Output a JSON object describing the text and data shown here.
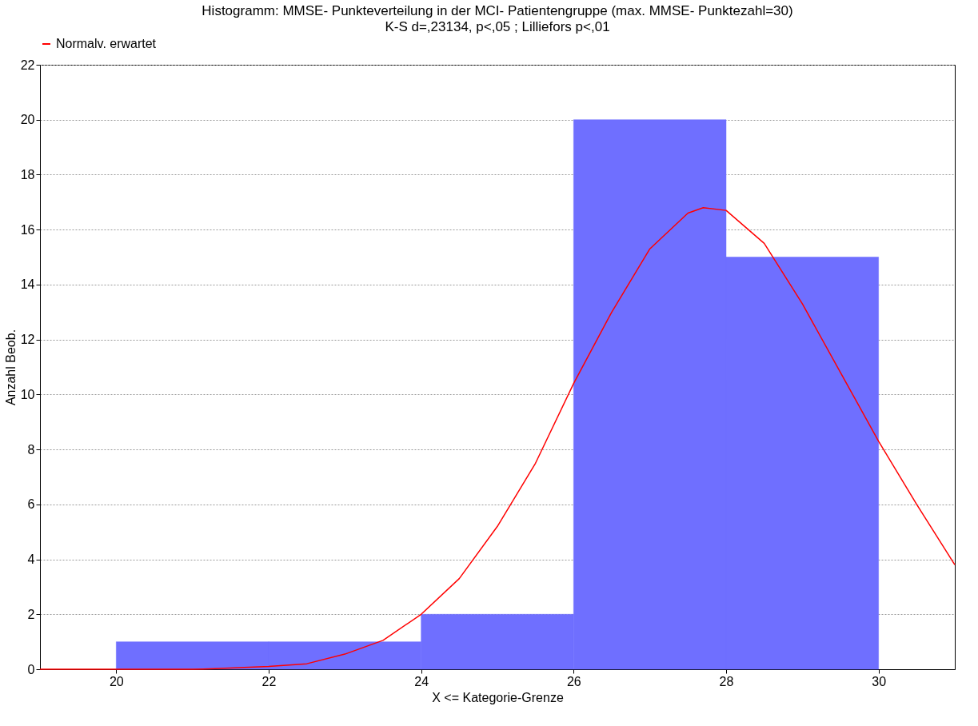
{
  "chart_data": {
    "type": "histogram",
    "title": "Histogramm: MMSE- Punkteverteilung in der MCI- Patientengruppe (max. MMSE- Punktezahl=30)",
    "subtitle": "K-S d=,23134, p<,05 ; Lilliefors p<,01",
    "xlabel": "X <= Kategorie-Grenze",
    "ylabel": "Anzahl Beob.",
    "bins": [
      20,
      22,
      24,
      26,
      28,
      30
    ],
    "values": [
      1,
      1,
      2,
      20,
      15
    ],
    "color": "#6f6fff",
    "series": [
      {
        "name": "Normalv. erwartet",
        "type": "line",
        "color": "#ff0000",
        "x": [
          19,
          20,
          21,
          21.3,
          22,
          22.5,
          23,
          23.5,
          24,
          24.5,
          25,
          25.5,
          26,
          26.5,
          27,
          27.5,
          27.7,
          28,
          28.5,
          29,
          29.5,
          30,
          30.5,
          31
        ],
        "values": [
          0,
          0,
          0,
          0.02,
          0.1,
          0.2,
          0.55,
          1.05,
          2.0,
          3.3,
          5.2,
          7.5,
          10.4,
          13.0,
          15.3,
          16.6,
          16.8,
          16.7,
          15.5,
          13.3,
          10.8,
          8.3,
          6.0,
          3.8
        ]
      }
    ],
    "xlim": [
      19,
      31
    ],
    "xticks": [
      20,
      22,
      24,
      26,
      28,
      30
    ],
    "ylim": [
      0,
      22
    ],
    "yticks": [
      0,
      2,
      4,
      6,
      8,
      10,
      12,
      14,
      16,
      18,
      20,
      22
    ],
    "grid": "y",
    "legend": "top",
    "marker": "none",
    "line_style": "solid"
  }
}
